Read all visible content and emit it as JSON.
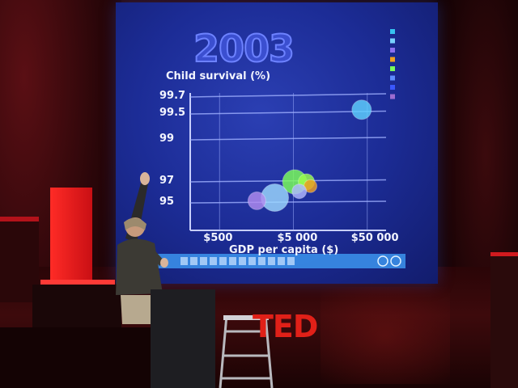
{
  "slide": {
    "year": "2003",
    "y_label": "Child survival (%)",
    "x_label": "GDP per capita ($)"
  },
  "chart_data": {
    "type": "scatter",
    "x_scale": "log",
    "xlim": [
      200,
      90000
    ],
    "x_ticks": [
      {
        "value": 500,
        "label": "$500"
      },
      {
        "value": 5000,
        "label": "$5 000"
      },
      {
        "value": 50000,
        "label": "$50 000"
      }
    ],
    "y_ticks": [
      {
        "value": 99.7,
        "label": "99.7"
      },
      {
        "value": 99.5,
        "label": "99.5"
      },
      {
        "value": 99,
        "label": "99"
      },
      {
        "value": 97,
        "label": "97"
      },
      {
        "value": 95,
        "label": "95"
      }
    ],
    "ylabel": "Child survival (%)",
    "xlabel": "GDP per capita ($)",
    "points": [
      {
        "x": 42000,
        "y": 99.55,
        "r": 12,
        "color": "#5fd0ff"
      },
      {
        "x": 5200,
        "y": 97.0,
        "r": 15,
        "color": "#7bff5a"
      },
      {
        "x": 7500,
        "y": 97.0,
        "r": 10,
        "color": "#9aff4c"
      },
      {
        "x": 8500,
        "y": 96.6,
        "r": 8,
        "color": "#f0a020"
      },
      {
        "x": 6000,
        "y": 96.1,
        "r": 9,
        "color": "#b0b8ff"
      },
      {
        "x": 2800,
        "y": 95.5,
        "r": 17,
        "color": "#9dd8ff"
      },
      {
        "x": 1600,
        "y": 95.2,
        "r": 11,
        "color": "#b08cf0"
      }
    ],
    "legend_colors": [
      "#36c3f0",
      "#78d1ff",
      "#8a6ff0",
      "#f0a020",
      "#7bff5a",
      "#5f8cff",
      "#3a57ff",
      "#9c6cd0"
    ]
  },
  "colors": {
    "screen": "#1c2c96",
    "ted_red": "#e02018"
  },
  "stage": {
    "logo_text": "TED"
  }
}
